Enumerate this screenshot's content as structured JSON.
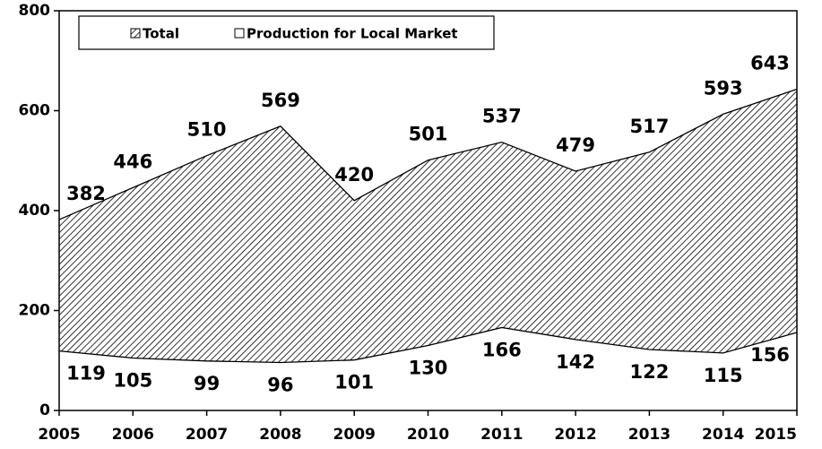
{
  "chart_data": {
    "type": "area",
    "x": [
      2005,
      2006,
      2007,
      2008,
      2009,
      2010,
      2011,
      2012,
      2013,
      2014,
      2015
    ],
    "xlim": [
      2005,
      2015
    ],
    "xticks": [
      2005,
      2006,
      2007,
      2008,
      2009,
      2010,
      2011,
      2012,
      2013,
      2014,
      2015
    ],
    "ylim": [
      0,
      800
    ],
    "yticks": [
      0,
      200,
      400,
      600,
      800
    ],
    "legend": "top",
    "series": [
      {
        "name": "Total",
        "color": "#000000",
        "pattern": "hatch",
        "values": [
          382,
          446,
          510,
          569,
          420,
          501,
          537,
          479,
          517,
          593,
          643
        ]
      },
      {
        "name": "Production for Local Market",
        "color": "#ffffff",
        "values": [
          119,
          105,
          99,
          96,
          101,
          130,
          166,
          142,
          122,
          115,
          156
        ]
      }
    ]
  }
}
